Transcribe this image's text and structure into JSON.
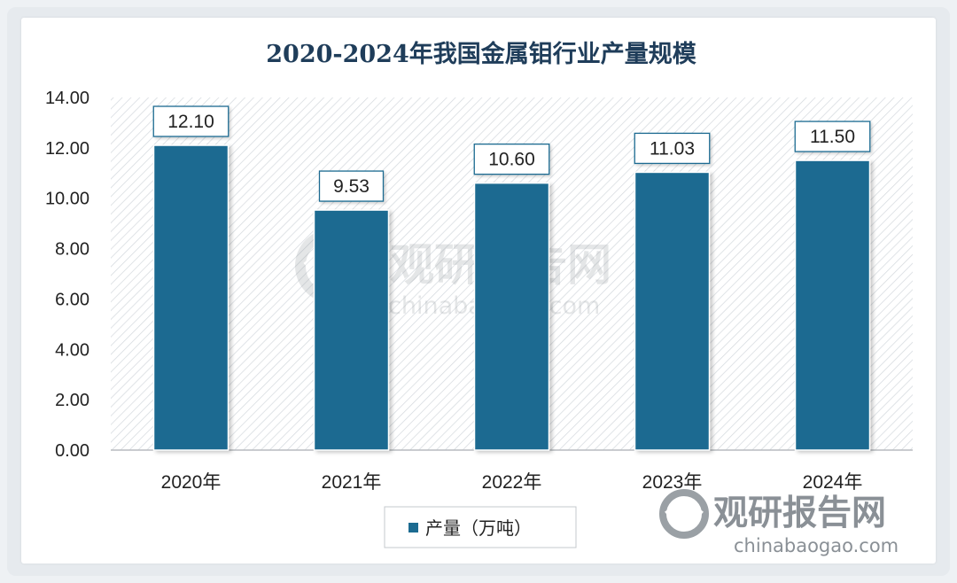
{
  "chart_data": {
    "type": "bar",
    "title": "2020-2024年我国金属钼行业产量规模",
    "categories": [
      "2020年",
      "2021年",
      "2022年",
      "2023年",
      "2024年"
    ],
    "series": [
      {
        "name": "产量（万吨）",
        "values": [
          12.1,
          9.53,
          10.6,
          11.03,
          11.5
        ],
        "labels": [
          "12.10",
          "9.53",
          "10.60",
          "11.03",
          "11.50"
        ],
        "color": "#1c6b91"
      }
    ],
    "ylim": [
      0,
      14
    ],
    "yticks": [
      "0.00",
      "2.00",
      "4.00",
      "6.00",
      "8.00",
      "10.00",
      "12.00",
      "14.00"
    ],
    "xlabel": "",
    "ylabel": "",
    "grid": false,
    "plot_background": "diagonal-hatch",
    "legend_position": "bottom"
  },
  "watermarks": {
    "center_cn": "观研报告网",
    "center_en": "chinabaogao.com",
    "corner_cn": "观研报告网",
    "corner_en": "chinabaogao.com"
  },
  "colors": {
    "bar": "#1c6b91",
    "title": "#1f3d5a",
    "label_border": "#1c6b91"
  }
}
